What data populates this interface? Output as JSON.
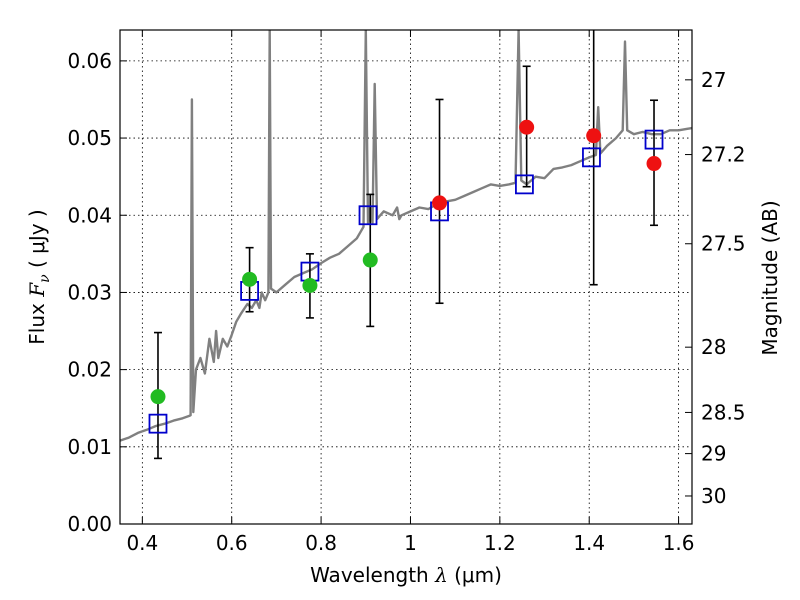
{
  "chart_data": {
    "type": "scatter",
    "title": "",
    "xlabel": "Wavelength  λ (μm)",
    "ylabel": "Flux  F_ν  ( μJy )",
    "ylabel_parts": {
      "prefix": "Flux  ",
      "symbol": "F",
      "subscript": "ν",
      "suffix": "  ( μJy )"
    },
    "xlabel_parts": {
      "prefix": "Wavelength  ",
      "symbol": "λ",
      "suffix": " (μm)"
    },
    "y2label": "Magnitude (AB)",
    "xlim": [
      0.35,
      1.63
    ],
    "ylim": [
      0.0,
      0.064
    ],
    "grid": true,
    "x_ticks": [
      0.4,
      0.6,
      0.8,
      1.0,
      1.2,
      1.4,
      1.6
    ],
    "x_tick_labels": [
      "0.4",
      "0.6",
      "0.8",
      "1",
      "1.2",
      "1.4",
      "1.6"
    ],
    "y_ticks": [
      0.0,
      0.01,
      0.02,
      0.03,
      0.04,
      0.05,
      0.06
    ],
    "y_tick_labels": [
      "0.00",
      "0.01",
      "0.02",
      "0.03",
      "0.04",
      "0.05",
      "0.06"
    ],
    "y2_ticks": [
      27,
      27.2,
      27.5,
      28,
      28.5,
      29,
      30
    ],
    "y2_tick_labels": [
      "27",
      "27.2",
      "27.5",
      "28",
      "28.5",
      "29",
      "30"
    ],
    "colors": {
      "model_spectrum": "#808080",
      "model_photometry": "#0000cc",
      "observed_optical": "#22bb22",
      "observed_nir": "#ee1111",
      "errorbar": "#000000"
    },
    "model_spectrum": [
      [
        0.35,
        0.0108
      ],
      [
        0.37,
        0.0112
      ],
      [
        0.39,
        0.0118
      ],
      [
        0.41,
        0.0122
      ],
      [
        0.43,
        0.0127
      ],
      [
        0.45,
        0.013
      ],
      [
        0.47,
        0.0134
      ],
      [
        0.49,
        0.0137
      ],
      [
        0.505,
        0.014
      ],
      [
        0.508,
        0.0141
      ],
      [
        0.511,
        0.055
      ],
      [
        0.514,
        0.0145
      ],
      [
        0.52,
        0.02
      ],
      [
        0.53,
        0.0215
      ],
      [
        0.54,
        0.0195
      ],
      [
        0.55,
        0.024
      ],
      [
        0.56,
        0.021
      ],
      [
        0.565,
        0.025
      ],
      [
        0.57,
        0.0215
      ],
      [
        0.58,
        0.024
      ],
      [
        0.59,
        0.023
      ],
      [
        0.6,
        0.0245
      ],
      [
        0.61,
        0.0262
      ],
      [
        0.62,
        0.0272
      ],
      [
        0.635,
        0.0285
      ],
      [
        0.645,
        0.028
      ],
      [
        0.655,
        0.029
      ],
      [
        0.662,
        0.028
      ],
      [
        0.667,
        0.03
      ],
      [
        0.675,
        0.029
      ],
      [
        0.682,
        0.03
      ],
      [
        0.685,
        0.064
      ],
      [
        0.688,
        0.0305
      ],
      [
        0.7,
        0.03
      ],
      [
        0.72,
        0.031
      ],
      [
        0.74,
        0.032
      ],
      [
        0.76,
        0.0325
      ],
      [
        0.78,
        0.033
      ],
      [
        0.8,
        0.0338
      ],
      [
        0.82,
        0.0345
      ],
      [
        0.84,
        0.035
      ],
      [
        0.86,
        0.036
      ],
      [
        0.88,
        0.037
      ],
      [
        0.895,
        0.0385
      ],
      [
        0.9,
        0.064
      ],
      [
        0.905,
        0.039
      ],
      [
        0.91,
        0.041
      ],
      [
        0.915,
        0.039
      ],
      [
        0.92,
        0.057
      ],
      [
        0.925,
        0.0395
      ],
      [
        0.94,
        0.0405
      ],
      [
        0.96,
        0.04
      ],
      [
        0.97,
        0.041
      ],
      [
        0.975,
        0.0395
      ],
      [
        0.98,
        0.04
      ],
      [
        1.0,
        0.0405
      ],
      [
        1.02,
        0.041
      ],
      [
        1.04,
        0.0408
      ],
      [
        1.06,
        0.0415
      ],
      [
        1.08,
        0.0418
      ],
      [
        1.1,
        0.042
      ],
      [
        1.12,
        0.0425
      ],
      [
        1.14,
        0.043
      ],
      [
        1.16,
        0.0435
      ],
      [
        1.18,
        0.044
      ],
      [
        1.2,
        0.0438
      ],
      [
        1.22,
        0.044
      ],
      [
        1.235,
        0.0442
      ],
      [
        1.242,
        0.064
      ],
      [
        1.248,
        0.0445
      ],
      [
        1.26,
        0.044
      ],
      [
        1.28,
        0.045
      ],
      [
        1.3,
        0.0448
      ],
      [
        1.32,
        0.046
      ],
      [
        1.34,
        0.0462
      ],
      [
        1.36,
        0.0465
      ],
      [
        1.38,
        0.047
      ],
      [
        1.4,
        0.0475
      ],
      [
        1.415,
        0.0478
      ],
      [
        1.42,
        0.054
      ],
      [
        1.425,
        0.048
      ],
      [
        1.44,
        0.049
      ],
      [
        1.46,
        0.05
      ],
      [
        1.475,
        0.051
      ],
      [
        1.48,
        0.0625
      ],
      [
        1.485,
        0.051
      ],
      [
        1.5,
        0.0505
      ],
      [
        1.52,
        0.0508
      ],
      [
        1.54,
        0.0505
      ],
      [
        1.56,
        0.0505
      ],
      [
        1.58,
        0.051
      ],
      [
        1.6,
        0.051
      ],
      [
        1.63,
        0.0513
      ]
    ],
    "model_photometry": [
      {
        "x": 0.435,
        "y": 0.013
      },
      {
        "x": 0.64,
        "y": 0.0302
      },
      {
        "x": 0.775,
        "y": 0.0327
      },
      {
        "x": 0.905,
        "y": 0.04
      },
      {
        "x": 1.065,
        "y": 0.0405
      },
      {
        "x": 1.255,
        "y": 0.044
      },
      {
        "x": 1.405,
        "y": 0.0475
      },
      {
        "x": 1.545,
        "y": 0.0498
      }
    ],
    "observed": [
      {
        "x": 0.435,
        "y": 0.0165,
        "yerr_low": 0.0085,
        "yerr_high": 0.0248,
        "group": "optical"
      },
      {
        "x": 0.64,
        "y": 0.0317,
        "yerr_low": 0.0275,
        "yerr_high": 0.0358,
        "group": "optical"
      },
      {
        "x": 0.775,
        "y": 0.0309,
        "yerr_low": 0.0267,
        "yerr_high": 0.035,
        "group": "optical"
      },
      {
        "x": 0.91,
        "y": 0.0342,
        "yerr_low": 0.0256,
        "yerr_high": 0.0427,
        "group": "optical"
      },
      {
        "x": 1.065,
        "y": 0.0416,
        "yerr_low": 0.0286,
        "yerr_high": 0.055,
        "group": "nir"
      },
      {
        "x": 1.26,
        "y": 0.0514,
        "yerr_low": 0.0437,
        "yerr_high": 0.0593,
        "group": "nir"
      },
      {
        "x": 1.41,
        "y": 0.0503,
        "yerr_low": 0.031,
        "yerr_high": 0.064,
        "group": "nir"
      },
      {
        "x": 1.545,
        "y": 0.0467,
        "yerr_low": 0.0387,
        "yerr_high": 0.0549,
        "group": "nir"
      }
    ]
  }
}
